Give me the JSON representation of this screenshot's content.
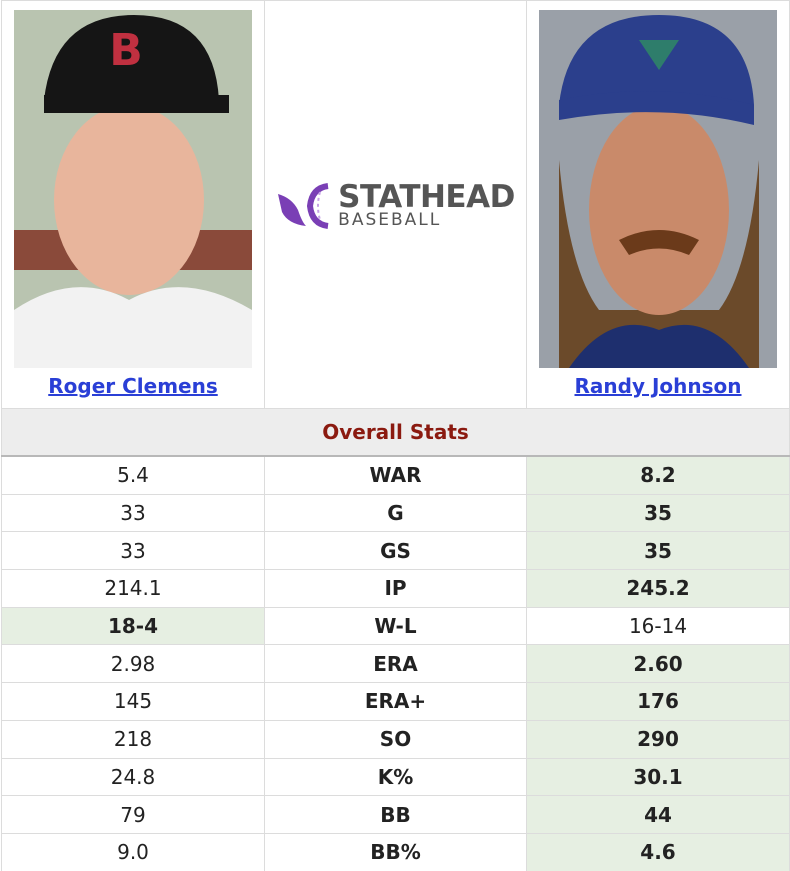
{
  "players": [
    {
      "name": "Roger Clemens"
    },
    {
      "name": "Randy Johnson"
    }
  ],
  "logo": {
    "title": "STATHEAD",
    "subtitle": "BASEBALL"
  },
  "section": "Overall Stats",
  "rows": [
    {
      "stat": "WAR",
      "left": "5.4",
      "right": "8.2",
      "better": "right"
    },
    {
      "stat": "G",
      "left": "33",
      "right": "35",
      "better": "right"
    },
    {
      "stat": "GS",
      "left": "33",
      "right": "35",
      "better": "right"
    },
    {
      "stat": "IP",
      "left": "214.1",
      "right": "245.2",
      "better": "right"
    },
    {
      "stat": "W-L",
      "left": "18-4",
      "right": "16-14",
      "better": "left"
    },
    {
      "stat": "ERA",
      "left": "2.98",
      "right": "2.60",
      "better": "right"
    },
    {
      "stat": "ERA+",
      "left": "145",
      "right": "176",
      "better": "right"
    },
    {
      "stat": "SO",
      "left": "218",
      "right": "290",
      "better": "right"
    },
    {
      "stat": "K%",
      "left": "24.8",
      "right": "30.1",
      "better": "right"
    },
    {
      "stat": "BB",
      "left": "79",
      "right": "44",
      "better": "right"
    },
    {
      "stat": "BB%",
      "left": "9.0",
      "right": "4.6",
      "better": "right"
    }
  ]
}
